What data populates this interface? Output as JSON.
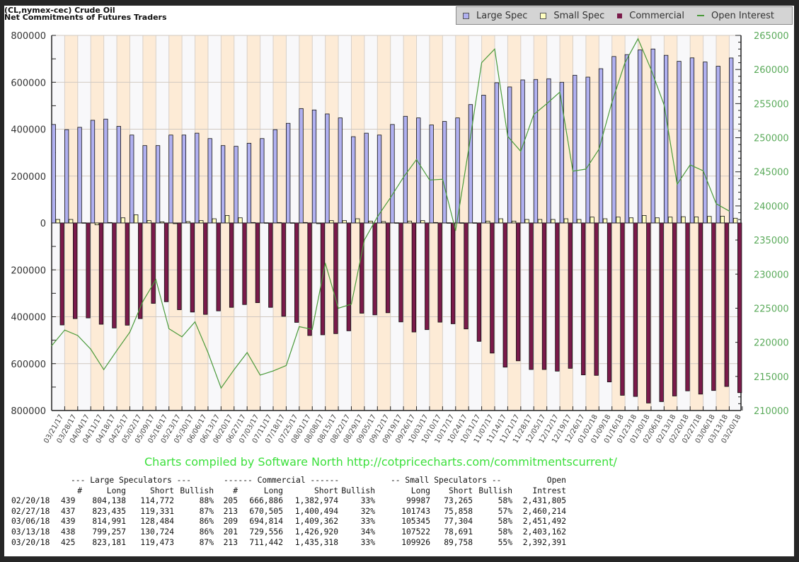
{
  "title_line1": "(CL,nymex-cec) Crude Oil",
  "title_line2": "Net Commitments of Futures Traders",
  "legend": [
    {
      "label": "Large Spec",
      "color": "#b0b0f0",
      "kind": "box"
    },
    {
      "label": "Small Spec",
      "color": "#ffffc0",
      "kind": "box"
    },
    {
      "label": "Commercial",
      "color": "#7a1a4a",
      "kind": "box"
    },
    {
      "label": "Open Interest",
      "color": "#4a9a3a",
      "kind": "line"
    }
  ],
  "credit": "Charts compiled by Software North  http://cotpricecharts.com/commitmentscurrent/",
  "chart_data": {
    "type": "bar",
    "title": "(CL,nymex-cec) Crude Oil — Net Commitments of Futures Traders",
    "xlabel": "",
    "ylabel": "",
    "ylim": [
      -800000,
      800000
    ],
    "y_ticks": [
      "800000",
      "600000",
      "400000",
      "200000",
      "0",
      "200000",
      "400000",
      "600000",
      "800000"
    ],
    "y2lim": [
      210000,
      265000
    ],
    "y2_ticks": [
      "265000",
      "260000",
      "255000",
      "250000",
      "245000",
      "240000",
      "235000",
      "230000",
      "225000",
      "220000",
      "215000",
      "210000"
    ],
    "grid": true,
    "legend_position": "top-right",
    "categories": [
      "03/21/17",
      "03/28/17",
      "04/04/17",
      "04/11/17",
      "04/18/17",
      "04/25/17",
      "05/02/17",
      "05/09/17",
      "05/16/17",
      "05/23/17",
      "05/30/17",
      "06/06/17",
      "06/13/17",
      "06/20/17",
      "06/27/17",
      "07/03/17",
      "07/11/17",
      "07/18/17",
      "07/25/17",
      "08/01/17",
      "08/08/17",
      "08/15/17",
      "08/22/17",
      "08/29/17",
      "09/05/17",
      "09/12/17",
      "09/19/17",
      "09/26/17",
      "10/03/17",
      "10/10/17",
      "10/17/17",
      "10/24/17",
      "10/31/17",
      "11/07/17",
      "11/14/17",
      "11/21/17",
      "11/28/17",
      "12/05/17",
      "12/12/17",
      "12/19/17",
      "12/26/17",
      "01/02/18",
      "01/09/18",
      "01/16/18",
      "01/23/18",
      "01/30/18",
      "02/06/18",
      "02/13/18",
      "02/20/18",
      "02/27/18",
      "03/06/18",
      "03/13/18",
      "03/20/18"
    ],
    "series": [
      {
        "name": "Large Spec",
        "axis": "left",
        "values": [
          420000,
          398000,
          408000,
          438000,
          443000,
          412000,
          375000,
          330000,
          330000,
          375000,
          375000,
          383000,
          360000,
          330000,
          327000,
          340000,
          360000,
          398000,
          425000,
          488000,
          482000,
          465000,
          448000,
          368000,
          383000,
          375000,
          420000,
          455000,
          448000,
          418000,
          433000,
          448000,
          505000,
          545000,
          598000,
          580000,
          610000,
          612000,
          615000,
          600000,
          630000,
          622000,
          658000,
          710000,
          718000,
          738000,
          742000,
          715000,
          689366,
          704104,
          686507,
          668533,
          703708
        ]
      },
      {
        "name": "Small Spec",
        "axis": "left",
        "values": [
          15000,
          15000,
          1000,
          -8000,
          2000,
          22000,
          35000,
          10000,
          5000,
          -3000,
          6000,
          10000,
          18000,
          32000,
          22000,
          2000,
          1000,
          2000,
          1000,
          2000,
          -3000,
          10000,
          10000,
          18000,
          8000,
          6000,
          1000,
          8000,
          10000,
          2000,
          1000,
          1000,
          1000,
          8000,
          18000,
          8000,
          15000,
          15000,
          15000,
          18000,
          15000,
          25000,
          18000,
          25000,
          22000,
          32000,
          22000,
          25000,
          26722,
          25885,
          28041,
          28831,
          20168
        ]
      },
      {
        "name": "Commercial",
        "axis": "left",
        "values": [
          -435000,
          -408000,
          -405000,
          -432000,
          -448000,
          -436000,
          -408000,
          -343000,
          -336000,
          -370000,
          -380000,
          -390000,
          -375000,
          -360000,
          -348000,
          -340000,
          -360000,
          -398000,
          -424000,
          -480000,
          -477000,
          -472000,
          -460000,
          -385000,
          -392000,
          -383000,
          -422000,
          -465000,
          -455000,
          -423000,
          -430000,
          -452000,
          -505000,
          -555000,
          -615000,
          -588000,
          -625000,
          -625000,
          -632000,
          -620000,
          -648000,
          -650000,
          -678000,
          -735000,
          -740000,
          -768000,
          -762000,
          -738000,
          -716088,
          -729989,
          -714548,
          -697364,
          -723876
        ]
      },
      {
        "name": "Open Interest",
        "axis": "right",
        "type": "line",
        "values": [
          219500,
          221800,
          221000,
          219000,
          216000,
          218800,
          221500,
          226000,
          229200,
          222000,
          220800,
          223000,
          218500,
          213300,
          216000,
          218500,
          215200,
          215800,
          216600,
          222300,
          221900,
          231600,
          225000,
          225600,
          235000,
          238400,
          241200,
          244200,
          246800,
          243800,
          243900,
          236400,
          248300,
          261000,
          263000,
          250200,
          248000,
          253400,
          255000,
          256700,
          245100,
          245400,
          248300,
          255200,
          261000,
          264500,
          260000,
          254800,
          243180,
          246020,
          245150,
          240320,
          239240
        ]
      }
    ]
  },
  "table": {
    "group_headers": {
      "large": "--- Large Speculators ---",
      "commercial": "------ Commercial ------",
      "small": "-- Small Speculators --",
      "open": "Open"
    },
    "columns": [
      "",
      "#",
      "Long",
      "Short",
      "Bullish",
      "#",
      "Long",
      "Short",
      "Bullish",
      "Long",
      "Short",
      "Bullish",
      "Intrest"
    ],
    "rows": [
      [
        "02/20/18",
        "439",
        "804,138",
        "114,772",
        "88%",
        "205",
        "666,886",
        "1,382,974",
        "33%",
        "99987",
        "73,265",
        "58%",
        "2,431,805"
      ],
      [
        "02/27/18",
        "437",
        "823,435",
        "119,331",
        "87%",
        "213",
        "670,505",
        "1,400,494",
        "32%",
        "101743",
        "75,858",
        "57%",
        "2,460,214"
      ],
      [
        "03/06/18",
        "439",
        "814,991",
        "128,484",
        "86%",
        "209",
        "694,814",
        "1,409,362",
        "33%",
        "105345",
        "77,304",
        "58%",
        "2,451,492"
      ],
      [
        "03/13/18",
        "438",
        "799,257",
        "130,724",
        "86%",
        "201",
        "729,556",
        "1,426,920",
        "34%",
        "107522",
        "78,691",
        "58%",
        "2,403,162"
      ],
      [
        "03/20/18",
        "425",
        "823,181",
        "119,473",
        "87%",
        "213",
        "711,442",
        "1,435,318",
        "33%",
        "109926",
        "89,758",
        "55%",
        "2,392,391"
      ]
    ]
  }
}
